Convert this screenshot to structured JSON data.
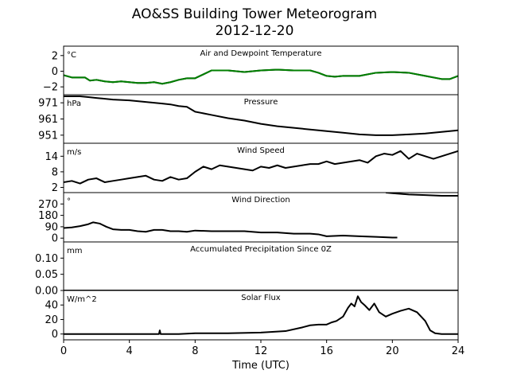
{
  "figure": {
    "title_line1": "AO&SS Building Tower Meteorogram",
    "title_line2": "2012-12-20",
    "xlabel": "Time (UTC)"
  },
  "chart_data": [
    {
      "type": "line",
      "title": "Air and Dewpoint Temperature",
      "unit": "°C",
      "xlim": [
        0,
        24
      ],
      "ylim": [
        -3,
        3.2
      ],
      "yticks": [
        -2,
        0,
        2
      ],
      "ytick_labels": [
        "−2",
        "0",
        "2"
      ],
      "series": [
        {
          "color": "#000000",
          "x": [
            0,
            0.5,
            1,
            1.3,
            1.6,
            2,
            2.5,
            3,
            3.5,
            4,
            4.5,
            5,
            5.5,
            6,
            6.5,
            7,
            7.5,
            8,
            8.5,
            9,
            9.5,
            10,
            11,
            12,
            13,
            14,
            15,
            15.5,
            16,
            16.5,
            17,
            18,
            19,
            20,
            21,
            22,
            23,
            23.5,
            24
          ],
          "y": [
            -0.5,
            -0.8,
            -0.8,
            -0.8,
            -1.2,
            -1.1,
            -1.3,
            -1.4,
            -1.3,
            -1.4,
            -1.5,
            -1.5,
            -1.4,
            -1.6,
            -1.4,
            -1.1,
            -0.9,
            -0.9,
            -0.4,
            0.1,
            0.1,
            0.1,
            -0.1,
            0.1,
            0.2,
            0.1,
            0.1,
            -0.2,
            -0.6,
            -0.7,
            -0.6,
            -0.6,
            -0.2,
            -0.1,
            -0.2,
            -0.6,
            -1.0,
            -1.0,
            -0.6
          ]
        },
        {
          "color": "#008000",
          "x": [
            0,
            0.5,
            1,
            1.3,
            1.6,
            2,
            2.5,
            3,
            3.5,
            4,
            4.5,
            5,
            5.5,
            6,
            6.5,
            7,
            7.5,
            8,
            8.5,
            9,
            9.5,
            10,
            11,
            12,
            13,
            14,
            15,
            15.5,
            16,
            16.5,
            17,
            18,
            19,
            20,
            21,
            22,
            23,
            23.5,
            24
          ],
          "y": [
            -0.5,
            -0.8,
            -0.8,
            -0.8,
            -1.2,
            -1.1,
            -1.3,
            -1.4,
            -1.3,
            -1.4,
            -1.5,
            -1.5,
            -1.4,
            -1.6,
            -1.4,
            -1.1,
            -0.9,
            -0.9,
            -0.4,
            0.1,
            0.1,
            0.1,
            -0.1,
            0.1,
            0.2,
            0.1,
            0.1,
            -0.2,
            -0.6,
            -0.7,
            -0.6,
            -0.6,
            -0.2,
            -0.1,
            -0.2,
            -0.6,
            -1.0,
            -1.0,
            -0.6
          ]
        }
      ]
    },
    {
      "type": "line",
      "title": "Pressure",
      "unit": "hPa",
      "xlim": [
        0,
        24
      ],
      "ylim": [
        946,
        976
      ],
      "yticks": [
        951,
        961,
        971
      ],
      "ytick_labels": [
        "951",
        "961",
        "971"
      ],
      "series": [
        {
          "color": "#000000",
          "x": [
            0,
            0.5,
            1,
            1.5,
            2,
            3,
            4,
            5,
            6,
            6.5,
            7,
            7.5,
            8,
            9,
            10,
            11,
            12,
            13,
            14,
            15,
            16,
            17,
            18,
            19,
            20,
            21,
            22,
            23,
            24
          ],
          "y": [
            975,
            975,
            975,
            974.5,
            974,
            973,
            972.5,
            971.5,
            970.5,
            970,
            969,
            968.5,
            965.5,
            963.5,
            961.5,
            960,
            958,
            956.5,
            955.5,
            954.5,
            953.5,
            952.5,
            951.5,
            951,
            951,
            951.5,
            952,
            953,
            954
          ]
        }
      ]
    },
    {
      "type": "line",
      "title": "Wind Speed",
      "unit": "m/s",
      "xlim": [
        0,
        24
      ],
      "ylim": [
        0,
        19
      ],
      "yticks": [
        2,
        8,
        14
      ],
      "ytick_labels": [
        "2",
        "8",
        "14"
      ],
      "series": [
        {
          "color": "#000000",
          "x": [
            0,
            0.5,
            1,
            1.5,
            2,
            2.5,
            3,
            3.5,
            4,
            4.5,
            5,
            5.5,
            6,
            6.5,
            7,
            7.5,
            8,
            8.5,
            9,
            9.5,
            10,
            10.5,
            11,
            11.5,
            12,
            12.5,
            13,
            13.5,
            14,
            14.5,
            15,
            15.5,
            16,
            16.5,
            17,
            17.5,
            18,
            18.5,
            19,
            19.5,
            20,
            20.5,
            21,
            21.5,
            22,
            22.5,
            23,
            23.5,
            24
          ],
          "y": [
            4,
            4.5,
            3.5,
            5,
            5.5,
            4,
            4.5,
            5,
            5.5,
            6,
            6.5,
            5,
            4.5,
            6,
            5,
            5.5,
            8,
            10,
            9,
            10.5,
            10,
            9.5,
            9,
            8.5,
            10,
            9.5,
            10.5,
            9.5,
            10,
            10.5,
            11,
            11,
            12,
            11,
            11.5,
            12,
            12.5,
            11.5,
            14,
            15,
            14.5,
            16,
            13,
            15,
            14,
            13,
            14,
            15,
            16
          ]
        }
      ]
    },
    {
      "type": "line",
      "title": "Wind Direction",
      "unit": "°",
      "xlim": [
        0,
        24
      ],
      "ylim": [
        -30,
        360
      ],
      "yticks": [
        0,
        90,
        180,
        270
      ],
      "ytick_labels": [
        "0",
        "90",
        "180",
        "270"
      ],
      "series": [
        {
          "color": "#000000",
          "x": [
            0,
            0.5,
            1,
            1.5,
            1.8,
            2.2,
            2.6,
            3,
            3.5,
            4,
            4.5,
            5,
            5.5,
            6,
            6.5,
            7,
            7.5,
            8,
            9,
            10,
            11,
            12,
            13,
            14,
            15,
            15.5,
            16,
            17,
            18,
            19,
            20,
            20.3
          ],
          "y": [
            80,
            85,
            95,
            110,
            125,
            115,
            90,
            70,
            65,
            65,
            55,
            50,
            65,
            65,
            55,
            55,
            50,
            60,
            55,
            55,
            55,
            45,
            45,
            35,
            35,
            30,
            15,
            20,
            15,
            10,
            5,
            5
          ]
        },
        {
          "color": "#000000",
          "x": [
            19.6,
            20,
            21,
            22,
            23,
            24
          ],
          "y": [
            360,
            355,
            345,
            340,
            335,
            335
          ]
        }
      ]
    },
    {
      "type": "line",
      "title": "Accumulated Precipitation Since 0Z",
      "unit": "mm",
      "xlim": [
        0,
        24
      ],
      "ylim": [
        0,
        0.15
      ],
      "yticks": [
        0.0,
        0.05,
        0.1
      ],
      "ytick_labels": [
        "0.00",
        "0.05",
        "0.10"
      ],
      "series": [
        {
          "color": "#000000",
          "x": [
            0,
            24
          ],
          "y": [
            0,
            0
          ]
        }
      ]
    },
    {
      "type": "line",
      "title": "Solar Flux",
      "unit": "W/m^2",
      "xlim": [
        0,
        24
      ],
      "ylim": [
        -8,
        60
      ],
      "yticks": [
        0,
        20,
        40
      ],
      "ytick_labels": [
        "0",
        "20",
        "40"
      ],
      "series": [
        {
          "color": "#000000",
          "x": [
            0,
            5.8,
            5.85,
            5.9,
            7,
            8,
            10,
            12,
            13.5,
            14.5,
            15,
            15.5,
            16,
            16.3,
            16.6,
            17,
            17.3,
            17.5,
            17.7,
            17.9,
            18.1,
            18.3,
            18.6,
            18.9,
            19.2,
            19.6,
            20,
            20.5,
            21,
            21.5,
            22,
            22.3,
            22.6,
            23,
            24
          ],
          "y": [
            0,
            0,
            5,
            0,
            0,
            1,
            1,
            2,
            4,
            9,
            12,
            13,
            13,
            16,
            18,
            24,
            36,
            42,
            38,
            52,
            44,
            40,
            33,
            42,
            30,
            24,
            28,
            32,
            35,
            30,
            18,
            5,
            1,
            0,
            0
          ]
        }
      ]
    }
  ],
  "xaxis": {
    "xlim": [
      0,
      24
    ],
    "ticks": [
      0,
      4,
      8,
      12,
      16,
      20,
      24
    ],
    "tick_labels": [
      "0",
      "4",
      "8",
      "12",
      "16",
      "20",
      "24"
    ]
  }
}
